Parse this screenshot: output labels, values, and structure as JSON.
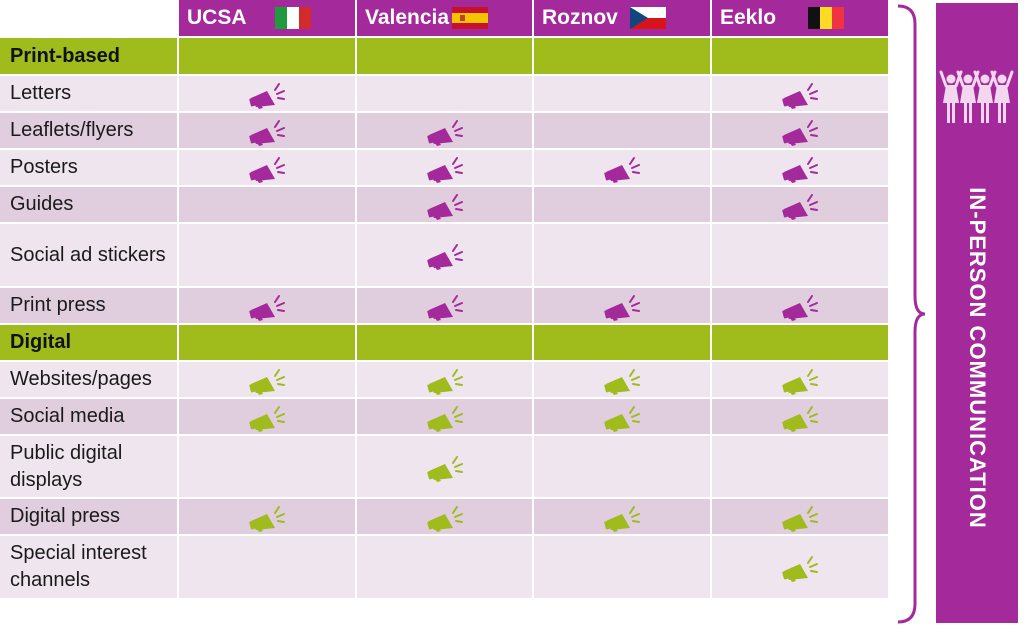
{
  "colors": {
    "purple": "#a4299a",
    "green": "#9fbb1c",
    "row_light": "#efe5ef",
    "row_dark": "#e0cedf",
    "print_icon": "#a4299a",
    "digital_icon": "#9fbb1c"
  },
  "header": {
    "columns": [
      {
        "label": "UCSA",
        "flag": "italy-flag-icon"
      },
      {
        "label": "Valencia",
        "flag": "spain-flag-icon"
      },
      {
        "label": "Roznov",
        "flag": "czech-flag-icon"
      },
      {
        "label": "Eeklo",
        "flag": "belgium-flag-icon"
      }
    ]
  },
  "sections": [
    {
      "title": "Print-based",
      "icon_type": "print",
      "rows": [
        {
          "label": "Letters",
          "marks": [
            true,
            false,
            false,
            true
          ]
        },
        {
          "label": "Leaflets/flyers",
          "marks": [
            true,
            true,
            false,
            true
          ]
        },
        {
          "label": "Posters",
          "marks": [
            true,
            true,
            true,
            true
          ]
        },
        {
          "label": "Guides",
          "marks": [
            false,
            true,
            false,
            true
          ]
        },
        {
          "label": "Social ad stickers",
          "marks": [
            false,
            true,
            false,
            false
          ]
        },
        {
          "label": "Print press",
          "marks": [
            true,
            true,
            true,
            true
          ]
        }
      ]
    },
    {
      "title": "Digital",
      "icon_type": "digital",
      "rows": [
        {
          "label": "Websites/pages",
          "marks": [
            true,
            true,
            true,
            true
          ]
        },
        {
          "label": "Social media",
          "marks": [
            true,
            true,
            true,
            true
          ]
        },
        {
          "label": "Public digital displays",
          "marks": [
            false,
            true,
            false,
            false
          ]
        },
        {
          "label": "Digital press",
          "marks": [
            true,
            true,
            true,
            true
          ]
        },
        {
          "label": "Special interest channels",
          "marks": [
            false,
            false,
            false,
            true
          ]
        }
      ]
    }
  ],
  "side_banner": {
    "text": "IN-PERSON COMMUNICATION",
    "icon": "people-group-icon"
  }
}
